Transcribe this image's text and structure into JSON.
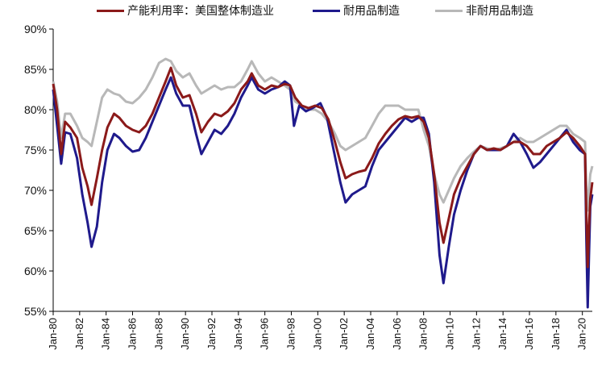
{
  "chart_data": {
    "type": "line",
    "title": "",
    "xlabel": "",
    "ylabel": "",
    "ylim": [
      55,
      90
    ],
    "xlim": [
      1980.0,
      2020.75
    ],
    "y_ticks": [
      "55%",
      "60%",
      "65%",
      "70%",
      "75%",
      "80%",
      "85%",
      "90%"
    ],
    "x_ticks": [
      "Jan-80",
      "Jan-82",
      "Jan-84",
      "Jan-86",
      "Jan-88",
      "Jan-90",
      "Jan-92",
      "Jan-94",
      "Jan-96",
      "Jan-98",
      "Jan-00",
      "Jan-02",
      "Jan-04",
      "Jan-06",
      "Jan-08",
      "Jan-10",
      "Jan-12",
      "Jan-14",
      "Jan-16",
      "Jan-18",
      "Jan-20"
    ],
    "legend_position": "top",
    "series": [
      {
        "name": "产能利用率：美国整体制造业",
        "color": "#8b1a1a",
        "points": [
          [
            1980.0,
            83.2
          ],
          [
            1980.3,
            80.0
          ],
          [
            1980.6,
            74.5
          ],
          [
            1980.9,
            78.5
          ],
          [
            1981.3,
            77.8
          ],
          [
            1981.8,
            76.5
          ],
          [
            1982.2,
            72.8
          ],
          [
            1982.6,
            70.5
          ],
          [
            1982.9,
            68.2
          ],
          [
            1983.3,
            71.5
          ],
          [
            1983.7,
            75.0
          ],
          [
            1984.1,
            77.8
          ],
          [
            1984.6,
            79.5
          ],
          [
            1985.0,
            79.0
          ],
          [
            1985.5,
            78.0
          ],
          [
            1986.0,
            77.5
          ],
          [
            1986.5,
            77.2
          ],
          [
            1987.0,
            78.0
          ],
          [
            1987.5,
            79.5
          ],
          [
            1988.0,
            81.5
          ],
          [
            1988.5,
            83.5
          ],
          [
            1988.9,
            85.2
          ],
          [
            1989.3,
            83.0
          ],
          [
            1989.8,
            81.5
          ],
          [
            1990.3,
            81.8
          ],
          [
            1990.8,
            79.5
          ],
          [
            1991.2,
            77.2
          ],
          [
            1991.7,
            78.5
          ],
          [
            1992.2,
            79.5
          ],
          [
            1992.7,
            79.2
          ],
          [
            1993.2,
            79.8
          ],
          [
            1993.7,
            80.8
          ],
          [
            1994.2,
            82.5
          ],
          [
            1994.7,
            83.5
          ],
          [
            1995.0,
            84.5
          ],
          [
            1995.5,
            83.0
          ],
          [
            1996.0,
            82.5
          ],
          [
            1996.5,
            83.0
          ],
          [
            1997.0,
            82.8
          ],
          [
            1997.5,
            83.2
          ],
          [
            1997.9,
            83.0
          ],
          [
            1998.3,
            81.5
          ],
          [
            1998.8,
            80.5
          ],
          [
            1999.3,
            80.2
          ],
          [
            1999.8,
            80.5
          ],
          [
            2000.3,
            80.2
          ],
          [
            2000.8,
            78.8
          ],
          [
            2001.3,
            76.0
          ],
          [
            2001.7,
            73.5
          ],
          [
            2002.1,
            71.5
          ],
          [
            2002.6,
            72.0
          ],
          [
            2003.1,
            72.3
          ],
          [
            2003.6,
            72.5
          ],
          [
            2004.1,
            74.0
          ],
          [
            2004.6,
            75.8
          ],
          [
            2005.1,
            77.0
          ],
          [
            2005.6,
            78.0
          ],
          [
            2006.1,
            78.8
          ],
          [
            2006.6,
            79.2
          ],
          [
            2007.1,
            79.0
          ],
          [
            2007.6,
            79.2
          ],
          [
            2008.0,
            78.5
          ],
          [
            2008.4,
            76.5
          ],
          [
            2008.8,
            72.0
          ],
          [
            2009.2,
            66.0
          ],
          [
            2009.5,
            63.5
          ],
          [
            2009.9,
            66.5
          ],
          [
            2010.3,
            69.5
          ],
          [
            2010.8,
            71.5
          ],
          [
            2011.3,
            73.0
          ],
          [
            2011.8,
            74.5
          ],
          [
            2012.3,
            75.5
          ],
          [
            2012.8,
            75.0
          ],
          [
            2013.3,
            75.2
          ],
          [
            2013.8,
            75.0
          ],
          [
            2014.3,
            75.5
          ],
          [
            2014.8,
            76.0
          ],
          [
            2015.3,
            76.0
          ],
          [
            2015.8,
            75.5
          ],
          [
            2016.3,
            74.5
          ],
          [
            2016.8,
            74.5
          ],
          [
            2017.3,
            75.5
          ],
          [
            2017.8,
            76.0
          ],
          [
            2018.3,
            76.5
          ],
          [
            2018.8,
            77.2
          ],
          [
            2019.3,
            76.5
          ],
          [
            2019.8,
            75.5
          ],
          [
            2020.2,
            74.5
          ],
          [
            2020.3,
            67.0
          ],
          [
            2020.4,
            60.5
          ],
          [
            2020.5,
            65.5
          ],
          [
            2020.6,
            69.0
          ],
          [
            2020.75,
            71.0
          ]
        ]
      },
      {
        "name": "耐用品制造",
        "color": "#1f1a8c",
        "points": [
          [
            1980.0,
            82.5
          ],
          [
            1980.3,
            78.0
          ],
          [
            1980.6,
            73.3
          ],
          [
            1980.9,
            77.2
          ],
          [
            1981.3,
            77.0
          ],
          [
            1981.8,
            74.0
          ],
          [
            1982.2,
            69.5
          ],
          [
            1982.6,
            66.0
          ],
          [
            1982.9,
            63.0
          ],
          [
            1983.3,
            65.5
          ],
          [
            1983.7,
            71.0
          ],
          [
            1984.1,
            75.0
          ],
          [
            1984.6,
            77.0
          ],
          [
            1985.0,
            76.5
          ],
          [
            1985.5,
            75.5
          ],
          [
            1986.0,
            74.8
          ],
          [
            1986.5,
            75.0
          ],
          [
            1987.0,
            76.5
          ],
          [
            1987.5,
            78.5
          ],
          [
            1988.0,
            80.5
          ],
          [
            1988.5,
            82.5
          ],
          [
            1988.9,
            84.0
          ],
          [
            1989.3,
            82.0
          ],
          [
            1989.8,
            80.5
          ],
          [
            1990.3,
            80.5
          ],
          [
            1990.8,
            77.0
          ],
          [
            1991.2,
            74.5
          ],
          [
            1991.7,
            76.0
          ],
          [
            1992.2,
            77.5
          ],
          [
            1992.7,
            77.0
          ],
          [
            1993.2,
            78.0
          ],
          [
            1993.7,
            79.5
          ],
          [
            1994.2,
            81.5
          ],
          [
            1994.7,
            83.0
          ],
          [
            1995.0,
            84.0
          ],
          [
            1995.5,
            82.5
          ],
          [
            1996.0,
            82.0
          ],
          [
            1996.5,
            82.5
          ],
          [
            1997.0,
            82.8
          ],
          [
            1997.5,
            83.5
          ],
          [
            1997.9,
            83.0
          ],
          [
            1998.2,
            78.0
          ],
          [
            1998.6,
            80.5
          ],
          [
            1999.1,
            79.8
          ],
          [
            1999.6,
            80.2
          ],
          [
            2000.2,
            80.8
          ],
          [
            2000.7,
            79.0
          ],
          [
            2001.2,
            75.0
          ],
          [
            2001.7,
            71.0
          ],
          [
            2002.1,
            68.5
          ],
          [
            2002.6,
            69.5
          ],
          [
            2003.1,
            70.0
          ],
          [
            2003.6,
            70.5
          ],
          [
            2004.1,
            73.0
          ],
          [
            2004.6,
            75.0
          ],
          [
            2005.1,
            76.0
          ],
          [
            2005.6,
            77.0
          ],
          [
            2006.1,
            78.0
          ],
          [
            2006.6,
            79.0
          ],
          [
            2007.1,
            78.5
          ],
          [
            2007.6,
            79.0
          ],
          [
            2008.0,
            79.0
          ],
          [
            2008.4,
            77.0
          ],
          [
            2008.8,
            71.0
          ],
          [
            2009.2,
            62.0
          ],
          [
            2009.5,
            58.5
          ],
          [
            2009.9,
            63.0
          ],
          [
            2010.3,
            67.0
          ],
          [
            2010.8,
            70.0
          ],
          [
            2011.3,
            72.5
          ],
          [
            2011.8,
            74.5
          ],
          [
            2012.3,
            75.5
          ],
          [
            2012.8,
            75.0
          ],
          [
            2013.3,
            75.0
          ],
          [
            2013.8,
            75.0
          ],
          [
            2014.3,
            75.5
          ],
          [
            2014.8,
            77.0
          ],
          [
            2015.3,
            76.0
          ],
          [
            2015.8,
            74.5
          ],
          [
            2016.3,
            72.8
          ],
          [
            2016.8,
            73.5
          ],
          [
            2017.3,
            74.5
          ],
          [
            2017.8,
            75.5
          ],
          [
            2018.3,
            76.5
          ],
          [
            2018.8,
            77.5
          ],
          [
            2019.3,
            76.0
          ],
          [
            2019.8,
            75.0
          ],
          [
            2020.2,
            74.5
          ],
          [
            2020.3,
            64.0
          ],
          [
            2020.4,
            55.5
          ],
          [
            2020.5,
            62.0
          ],
          [
            2020.6,
            68.0
          ],
          [
            2020.75,
            69.5
          ]
        ]
      },
      {
        "name": "非耐用品制造",
        "color": "#b8b8b8",
        "points": [
          [
            1980.0,
            83.5
          ],
          [
            1980.3,
            81.0
          ],
          [
            1980.6,
            76.5
          ],
          [
            1980.9,
            79.5
          ],
          [
            1981.3,
            79.5
          ],
          [
            1981.8,
            78.0
          ],
          [
            1982.2,
            76.5
          ],
          [
            1982.6,
            76.0
          ],
          [
            1982.9,
            75.5
          ],
          [
            1983.3,
            78.5
          ],
          [
            1983.7,
            81.5
          ],
          [
            1984.1,
            82.5
          ],
          [
            1984.6,
            82.0
          ],
          [
            1985.0,
            81.8
          ],
          [
            1985.5,
            81.0
          ],
          [
            1986.0,
            80.8
          ],
          [
            1986.5,
            81.5
          ],
          [
            1987.0,
            82.5
          ],
          [
            1987.5,
            84.0
          ],
          [
            1988.0,
            85.8
          ],
          [
            1988.5,
            86.3
          ],
          [
            1988.9,
            86.0
          ],
          [
            1989.3,
            84.8
          ],
          [
            1989.8,
            84.0
          ],
          [
            1990.3,
            84.5
          ],
          [
            1990.8,
            83.0
          ],
          [
            1991.2,
            82.0
          ],
          [
            1991.7,
            82.5
          ],
          [
            1992.2,
            83.0
          ],
          [
            1992.7,
            82.5
          ],
          [
            1993.2,
            82.8
          ],
          [
            1993.7,
            82.8
          ],
          [
            1994.2,
            83.5
          ],
          [
            1994.7,
            85.0
          ],
          [
            1995.0,
            86.0
          ],
          [
            1995.5,
            84.5
          ],
          [
            1996.0,
            83.5
          ],
          [
            1996.5,
            84.0
          ],
          [
            1997.0,
            83.5
          ],
          [
            1997.5,
            83.0
          ],
          [
            1997.9,
            82.5
          ],
          [
            1998.3,
            81.0
          ],
          [
            1998.8,
            80.5
          ],
          [
            1999.3,
            80.0
          ],
          [
            1999.8,
            80.0
          ],
          [
            2000.3,
            79.5
          ],
          [
            2000.8,
            78.5
          ],
          [
            2001.3,
            77.0
          ],
          [
            2001.7,
            75.5
          ],
          [
            2002.1,
            75.0
          ],
          [
            2002.6,
            75.5
          ],
          [
            2003.1,
            76.0
          ],
          [
            2003.6,
            76.5
          ],
          [
            2004.1,
            78.0
          ],
          [
            2004.6,
            79.5
          ],
          [
            2005.1,
            80.5
          ],
          [
            2005.6,
            80.5
          ],
          [
            2006.1,
            80.5
          ],
          [
            2006.6,
            80.0
          ],
          [
            2007.1,
            80.0
          ],
          [
            2007.6,
            80.0
          ],
          [
            2008.0,
            77.5
          ],
          [
            2008.4,
            75.5
          ],
          [
            2008.8,
            72.0
          ],
          [
            2009.2,
            69.5
          ],
          [
            2009.5,
            68.5
          ],
          [
            2009.9,
            70.0
          ],
          [
            2010.3,
            71.5
          ],
          [
            2010.8,
            73.0
          ],
          [
            2011.3,
            74.0
          ],
          [
            2011.8,
            74.8
          ],
          [
            2012.3,
            75.5
          ],
          [
            2012.8,
            75.2
          ],
          [
            2013.3,
            75.0
          ],
          [
            2013.8,
            75.2
          ],
          [
            2014.3,
            75.5
          ],
          [
            2014.8,
            76.0
          ],
          [
            2015.3,
            76.5
          ],
          [
            2015.8,
            76.0
          ],
          [
            2016.3,
            76.0
          ],
          [
            2016.8,
            76.5
          ],
          [
            2017.3,
            77.0
          ],
          [
            2017.8,
            77.5
          ],
          [
            2018.3,
            78.0
          ],
          [
            2018.8,
            78.0
          ],
          [
            2019.3,
            77.0
          ],
          [
            2019.8,
            76.5
          ],
          [
            2020.2,
            76.0
          ],
          [
            2020.3,
            70.5
          ],
          [
            2020.4,
            67.5
          ],
          [
            2020.5,
            70.0
          ],
          [
            2020.6,
            72.0
          ],
          [
            2020.75,
            73.0
          ]
        ]
      }
    ]
  }
}
